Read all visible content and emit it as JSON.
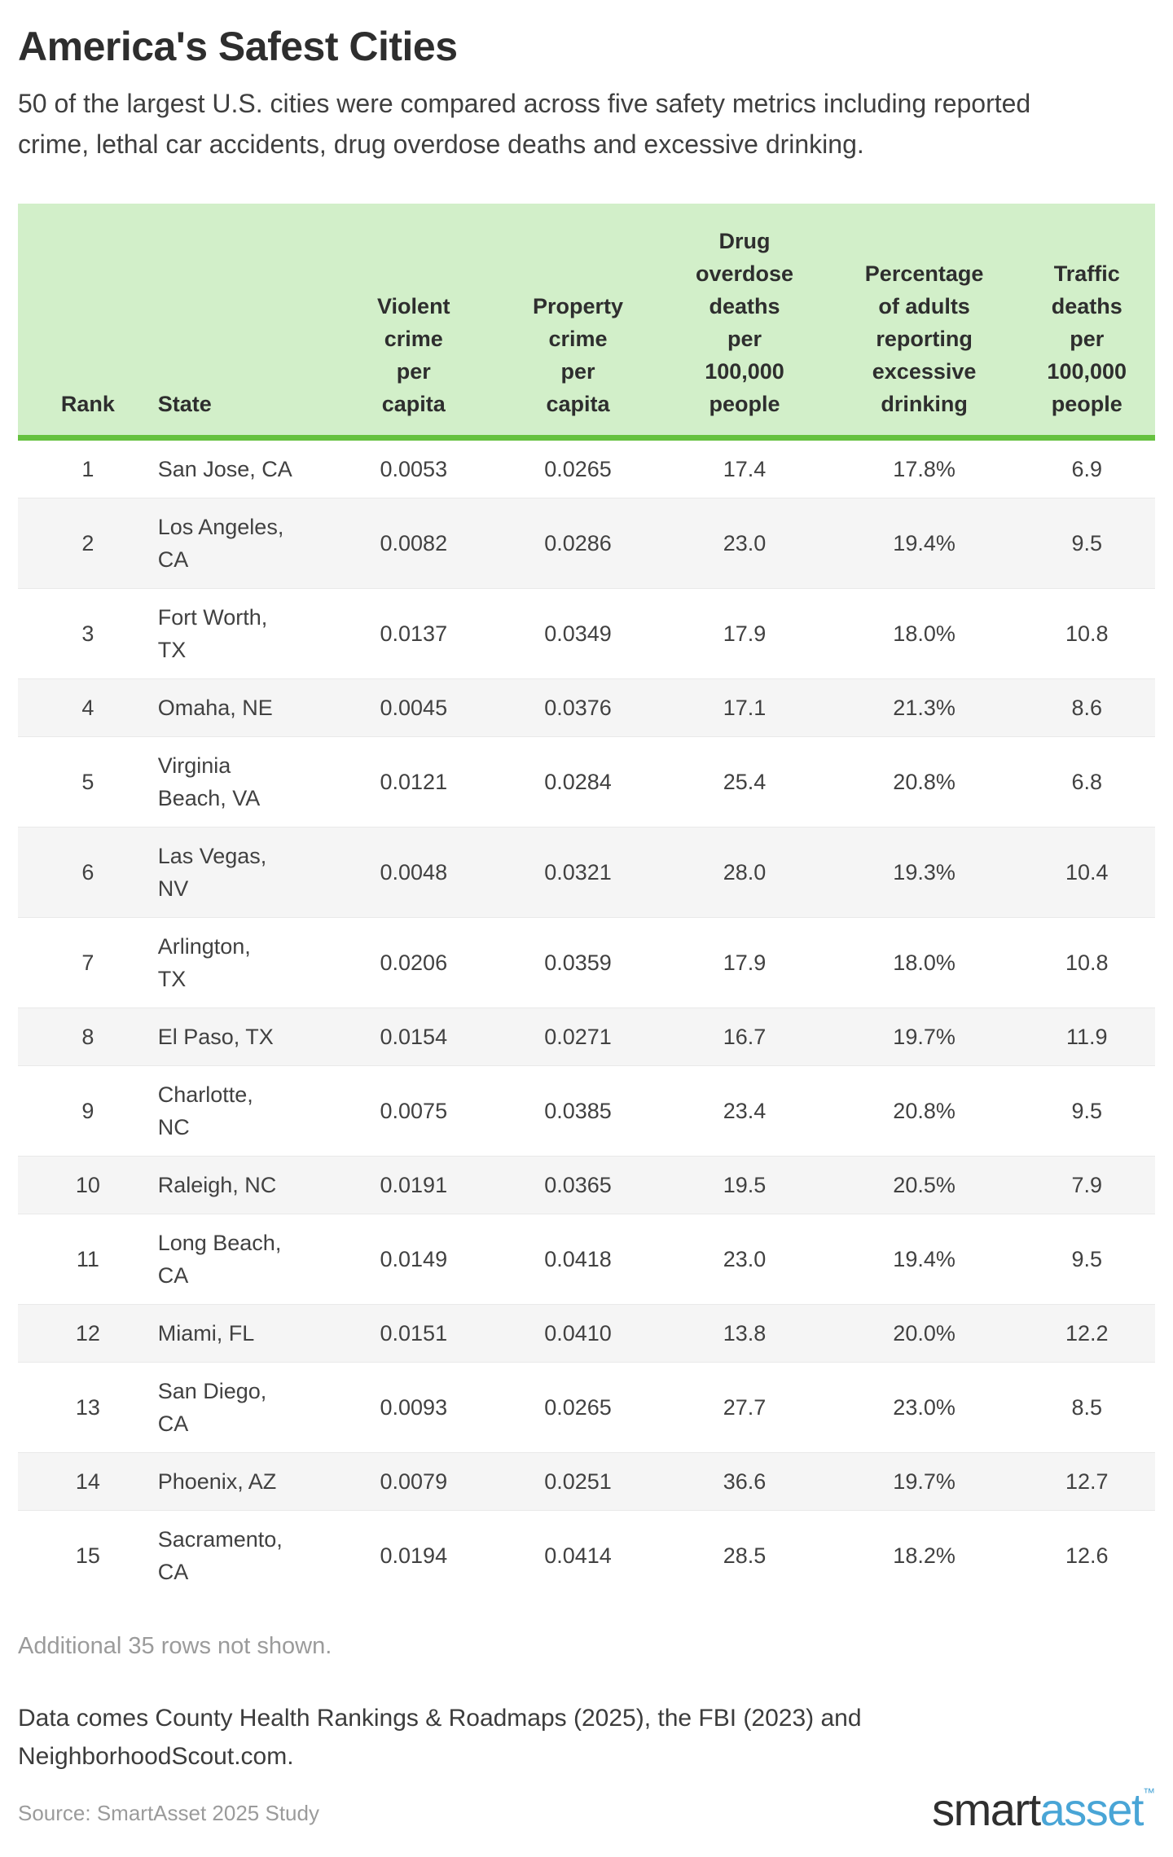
{
  "page": {
    "title": "America's Safest Cities",
    "subtitle": "50 of the largest U.S. cities were compared across five safety metrics including reported crime, lethal car accidents, drug overdose deaths and excessive drinking.",
    "rows_note": "Additional 35 rows not shown.",
    "data_note": "Data comes County Health Rankings & Roadmaps (2025), the FBI (2023) and NeighborhoodScout.com.",
    "source": "Source: SmartAsset 2025 Study",
    "logo": {
      "first": "smart",
      "second": "asset",
      "tm": "™"
    }
  },
  "colors": {
    "header_bg": "#d2efc9",
    "header_border": "#65c13e",
    "row_alt_bg": "#f5f5f5",
    "accent_blue": "#49a5d6",
    "muted_text": "#9b9b9b"
  },
  "chart_data": {
    "type": "table",
    "title": "America's Safest Cities",
    "columns": [
      {
        "label": "Rank",
        "align": "center"
      },
      {
        "label": "State",
        "align": "left"
      },
      {
        "label": "Violent\ncrime\nper\ncapita",
        "align": "center"
      },
      {
        "label": "Property\ncrime\nper\ncapita",
        "align": "center"
      },
      {
        "label": "Drug\noverdose\ndeaths\nper\n100,000\npeople",
        "align": "center"
      },
      {
        "label": "Percentage\nof adults\nreporting\nexcessive\ndrinking",
        "align": "center"
      },
      {
        "label": "Traffic\ndeaths\nper\n100,000\npeople",
        "align": "center"
      }
    ],
    "rows": [
      [
        "1",
        "San Jose, CA",
        "0.0053",
        "0.0265",
        "17.4",
        "17.8%",
        "6.9"
      ],
      [
        "2",
        "Los Angeles,\nCA",
        "0.0082",
        "0.0286",
        "23.0",
        "19.4%",
        "9.5"
      ],
      [
        "3",
        "Fort Worth,\nTX",
        "0.0137",
        "0.0349",
        "17.9",
        "18.0%",
        "10.8"
      ],
      [
        "4",
        "Omaha, NE",
        "0.0045",
        "0.0376",
        "17.1",
        "21.3%",
        "8.6"
      ],
      [
        "5",
        "Virginia\nBeach, VA",
        "0.0121",
        "0.0284",
        "25.4",
        "20.8%",
        "6.8"
      ],
      [
        "6",
        "Las Vegas,\nNV",
        "0.0048",
        "0.0321",
        "28.0",
        "19.3%",
        "10.4"
      ],
      [
        "7",
        "Arlington,\nTX",
        "0.0206",
        "0.0359",
        "17.9",
        "18.0%",
        "10.8"
      ],
      [
        "8",
        "El Paso, TX",
        "0.0154",
        "0.0271",
        "16.7",
        "19.7%",
        "11.9"
      ],
      [
        "9",
        "Charlotte,\nNC",
        "0.0075",
        "0.0385",
        "23.4",
        "20.8%",
        "9.5"
      ],
      [
        "10",
        "Raleigh, NC",
        "0.0191",
        "0.0365",
        "19.5",
        "20.5%",
        "7.9"
      ],
      [
        "11",
        "Long Beach,\nCA",
        "0.0149",
        "0.0418",
        "23.0",
        "19.4%",
        "9.5"
      ],
      [
        "12",
        "Miami, FL",
        "0.0151",
        "0.0410",
        "13.8",
        "20.0%",
        "12.2"
      ],
      [
        "13",
        "San Diego,\nCA",
        "0.0093",
        "0.0265",
        "27.7",
        "23.0%",
        "8.5"
      ],
      [
        "14",
        "Phoenix, AZ",
        "0.0079",
        "0.0251",
        "36.6",
        "19.7%",
        "12.7"
      ],
      [
        "15",
        "Sacramento,\nCA",
        "0.0194",
        "0.0414",
        "28.5",
        "18.2%",
        "12.6"
      ]
    ]
  }
}
